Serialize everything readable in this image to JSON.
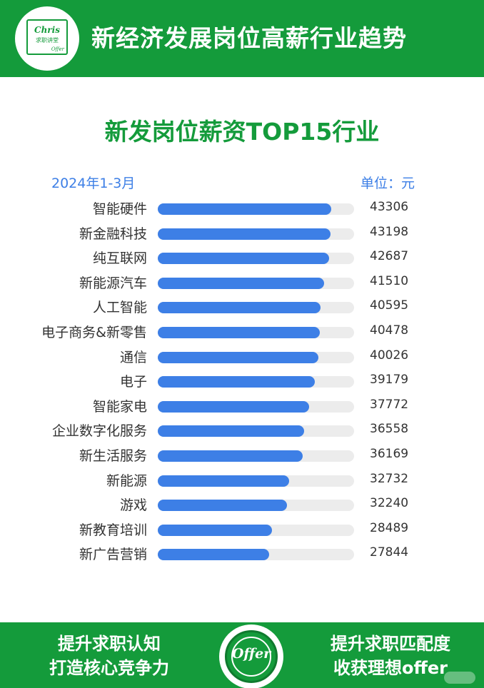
{
  "header": {
    "title": "新经济发展岗位高薪行业趋势",
    "logo_text": "Chris",
    "logo_subtext": "求职讲堂",
    "logo_tag": "Offer"
  },
  "chart_data": {
    "type": "bar",
    "orientation": "horizontal",
    "title": "新发岗位薪资TOP15行业",
    "period": "2024年1-3月",
    "unit_label": "单位：元",
    "categories": [
      "智能硬件",
      "新金融科技",
      "纯互联网",
      "新能源汽车",
      "人工智能",
      "电子商务&新零售",
      "通信",
      "电子",
      "智能家电",
      "企业数字化服务",
      "新生活服务",
      "新能源",
      "游戏",
      "新教育培训",
      "新广告营销"
    ],
    "values": [
      43306,
      43198,
      42687,
      41510,
      40595,
      40478,
      40026,
      39179,
      37772,
      36558,
      36169,
      32732,
      32240,
      28489,
      27844
    ],
    "value_labels": [
      "43306",
      "43198",
      "42687",
      "41510",
      "40595",
      "40478",
      "40026",
      "39179",
      "37772",
      "36558",
      "36169",
      "32732",
      "32240",
      "28489",
      "27844"
    ],
    "xlim": [
      0,
      49000
    ],
    "colors": {
      "bar": "#3d7fe6",
      "track": "#ececec"
    }
  },
  "footer": {
    "left_line1": "提升求职认知",
    "left_line2": "打造核心竞争力",
    "badge_text": "Offer",
    "right_line1": "提升求职匹配度",
    "right_line2": "收获理想offer"
  },
  "colors": {
    "brand_green": "#149b3b",
    "accent_blue": "#3d7fe6"
  }
}
